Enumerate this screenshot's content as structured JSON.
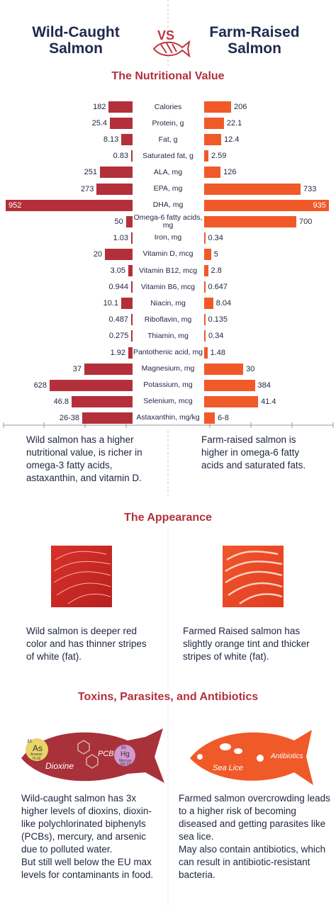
{
  "header": {
    "left_title": "Wild-Caught Salmon",
    "vs": "VS",
    "right_title": "Farm-Raised Salmon"
  },
  "nutrition": {
    "title": "The Nutritional Value",
    "rows": [
      {
        "label": "Calories",
        "wild": 182,
        "farm": 206
      },
      {
        "label": "Protein, g",
        "wild": 25.4,
        "farm": 22.1
      },
      {
        "label": "Fat, g",
        "wild": 8.13,
        "farm": 12.4
      },
      {
        "label": "Saturated fat, g",
        "wild": 0.83,
        "farm": 2.59
      },
      {
        "label": "ALA, mg",
        "wild": 251,
        "farm": 126
      },
      {
        "label": "EPA, mg",
        "wild": 273,
        "farm": 733
      },
      {
        "label": "DHA, mg",
        "wild": 952,
        "farm": 935
      },
      {
        "label": "Omega-6 fatty acids, mg",
        "wild": 50,
        "farm": 700
      },
      {
        "label": "Iron, mg",
        "wild": 1.03,
        "farm": 0.34
      },
      {
        "label": "Vitamin D, mcg",
        "wild": 20,
        "farm": 5
      },
      {
        "label": "Vitamin B12, mcg",
        "wild": 3.05,
        "farm": 2.8
      },
      {
        "label": "Vitamin B6, mcg",
        "wild": 0.944,
        "farm": 0.647
      },
      {
        "label": "Niacin, mg",
        "wild": 10.1,
        "farm": 8.04
      },
      {
        "label": "Riboflavin, mg",
        "wild": 0.487,
        "farm": 0.135
      },
      {
        "label": "Thiamin, mg",
        "wild": 0.275,
        "farm": 0.34
      },
      {
        "label": "Pantothenic acid, mg",
        "wild": 1.92,
        "farm": 1.48
      },
      {
        "label": "Magnesium, mg",
        "wild": 37,
        "farm": 30
      },
      {
        "label": "Potassium, mg",
        "wild": 628,
        "farm": 384
      },
      {
        "label": "Selenium, mcg",
        "wild": 46.8,
        "farm": 41.4
      },
      {
        "label": "Astaxanthin, mg/kg",
        "wild": "26-38",
        "farm": "6-8"
      }
    ],
    "wild_note": "Wild salmon has a higher nutritional value, is richer in omega-3 fatty acids, astaxanthin, and vitamin D.",
    "farm_note": "Farm-raised salmon is higher in omega-6 fatty acids and saturated fats."
  },
  "appearance": {
    "title": "The Appearance",
    "wild_note": "Wild salmon is deeper red color and has thinner stripes of white (fat).",
    "farm_note": "Farmed Raised salmon has slightly orange tint and thicker stripes of white (fat)."
  },
  "toxins": {
    "title": "Toxins, Parasites, and Antibiotics",
    "as_number": "33",
    "as_symbol": "As",
    "as_name": "Arsenic",
    "as_mass": "74.92",
    "hg_number": "80",
    "hg_symbol": "Hg",
    "hg_name": "Mercury",
    "hg_mass": "200.59",
    "dioxine": "Dioxine",
    "pcb": "PCB",
    "sea_lice": "Sea Lice",
    "antibiotics": "Antibiotics",
    "wild_note": [
      "Wild-caught salmon has 3x higher levels of dioxins, dioxin-like polychlorinated biphenyls (PCBs), mercury, and arsenic due to polluted water.",
      "But still well below the EU max levels for contaminants in food."
    ],
    "farm_note": [
      "Farmed salmon overcrowding leads to a higher risk of becoming diseased and getting parasites like sea lice.",
      "May also contain antibiotics, which can result in antibiotic-resistant bacteria."
    ]
  }
}
